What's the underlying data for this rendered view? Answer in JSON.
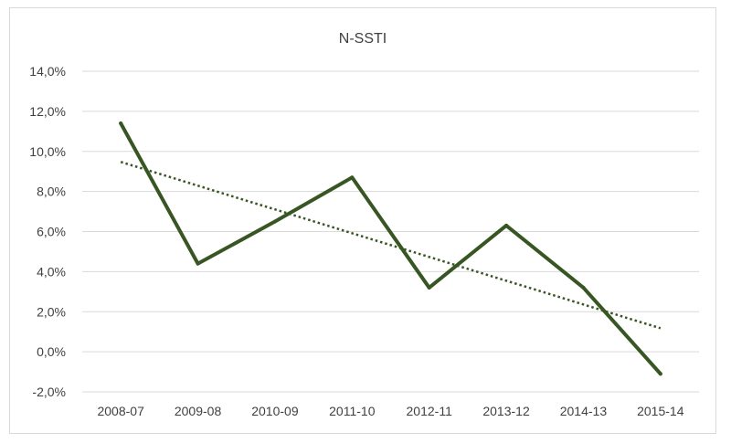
{
  "chart_data": {
    "type": "line",
    "title": "N-SSTI",
    "categories": [
      "2008-07",
      "2009-08",
      "2010-09",
      "2011-10",
      "2012-11",
      "2013-12",
      "2014-13",
      "2015-14"
    ],
    "series": [
      {
        "values": [
          11.4,
          4.4,
          6.5,
          8.7,
          3.2,
          6.3,
          3.2,
          -1.1
        ],
        "color": "#375623",
        "style": "solid"
      }
    ],
    "trendline": {
      "type": "linear",
      "color": "#375623",
      "style": "dotted"
    },
    "ylim": [
      -2,
      14
    ],
    "yticks": [
      -2,
      0,
      2,
      4,
      6,
      8,
      10,
      12,
      14
    ],
    "ytick_labels": [
      "-2,0%",
      "0,0%",
      "2,0%",
      "4,0%",
      "6,0%",
      "8,0%",
      "10,0%",
      "12,0%",
      "14,0%"
    ],
    "grid": true,
    "legend": "none"
  }
}
